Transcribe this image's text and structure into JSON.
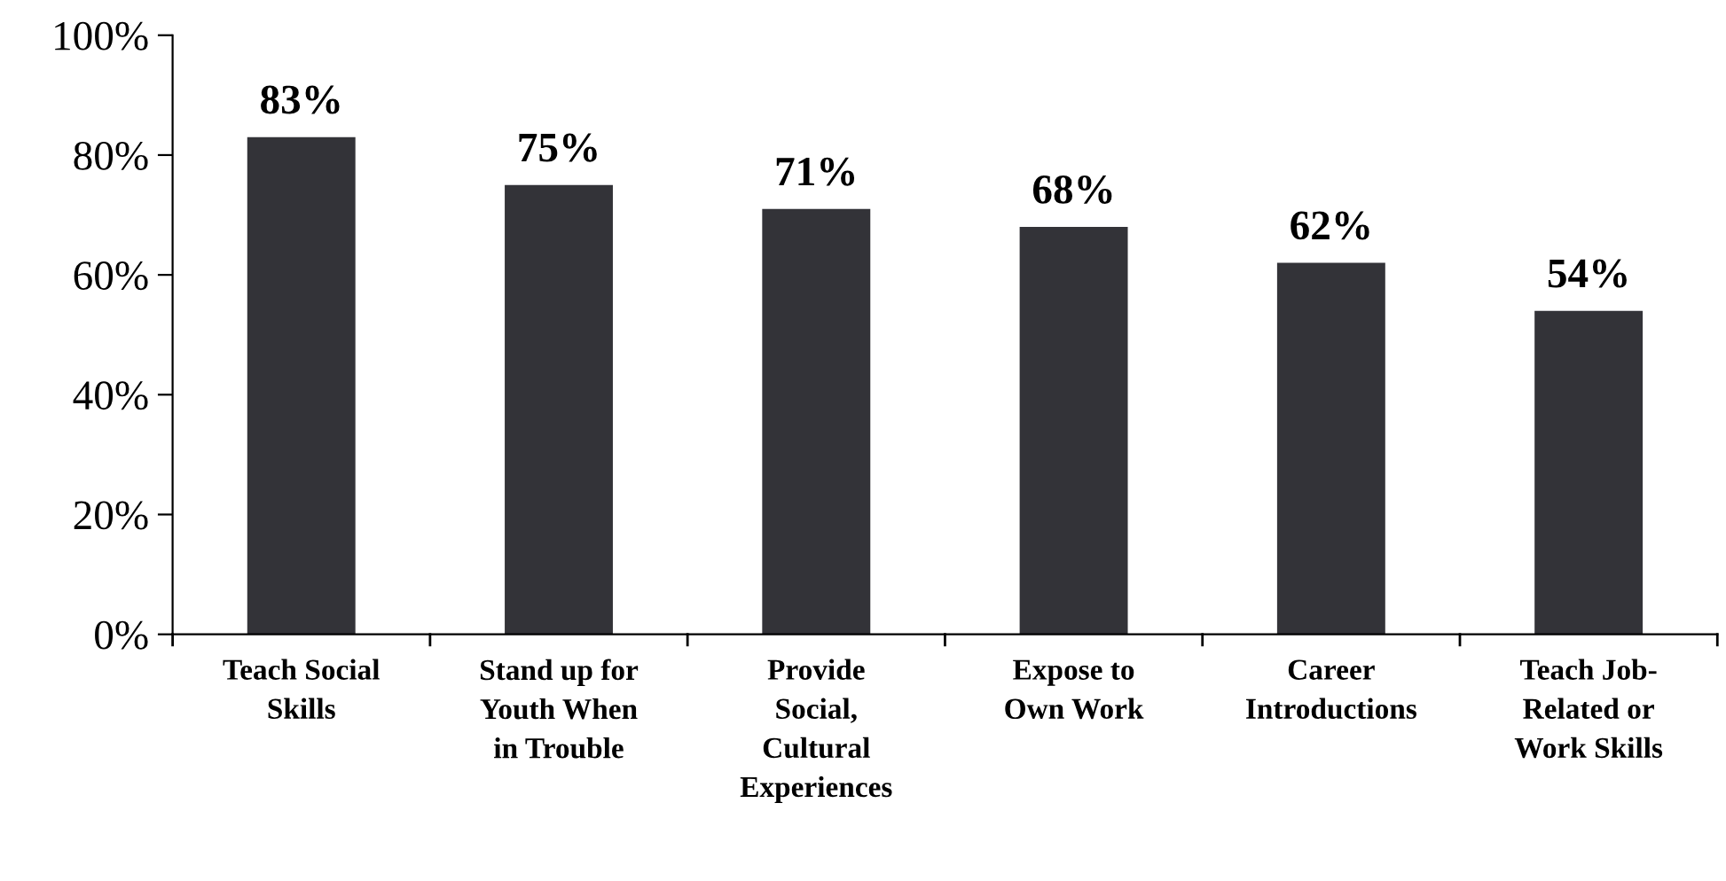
{
  "chart_data": {
    "type": "bar",
    "categories": [
      "Teach Social\nSkills",
      "Stand up for\nYouth When\nin Trouble",
      "Provide\nSocial,\nCultural\nExperiences",
      "Expose to\nOwn Work",
      "Career\nIntroductions",
      "Teach Job-\nRelated or\nWork Skills"
    ],
    "values": [
      83,
      75,
      71,
      68,
      62,
      54
    ],
    "value_labels": [
      "83%",
      "75%",
      "71%",
      "68%",
      "62%",
      "54%"
    ],
    "color": "#333338",
    "ylim": [
      0,
      100
    ],
    "yticks": [
      {
        "value": 0,
        "label": "0%"
      },
      {
        "value": 20,
        "label": "20%"
      },
      {
        "value": 40,
        "label": "40%"
      },
      {
        "value": 60,
        "label": "60%"
      },
      {
        "value": 80,
        "label": "80%"
      },
      {
        "value": 100,
        "label": "100%"
      }
    ],
    "grid": false,
    "legend": false
  }
}
